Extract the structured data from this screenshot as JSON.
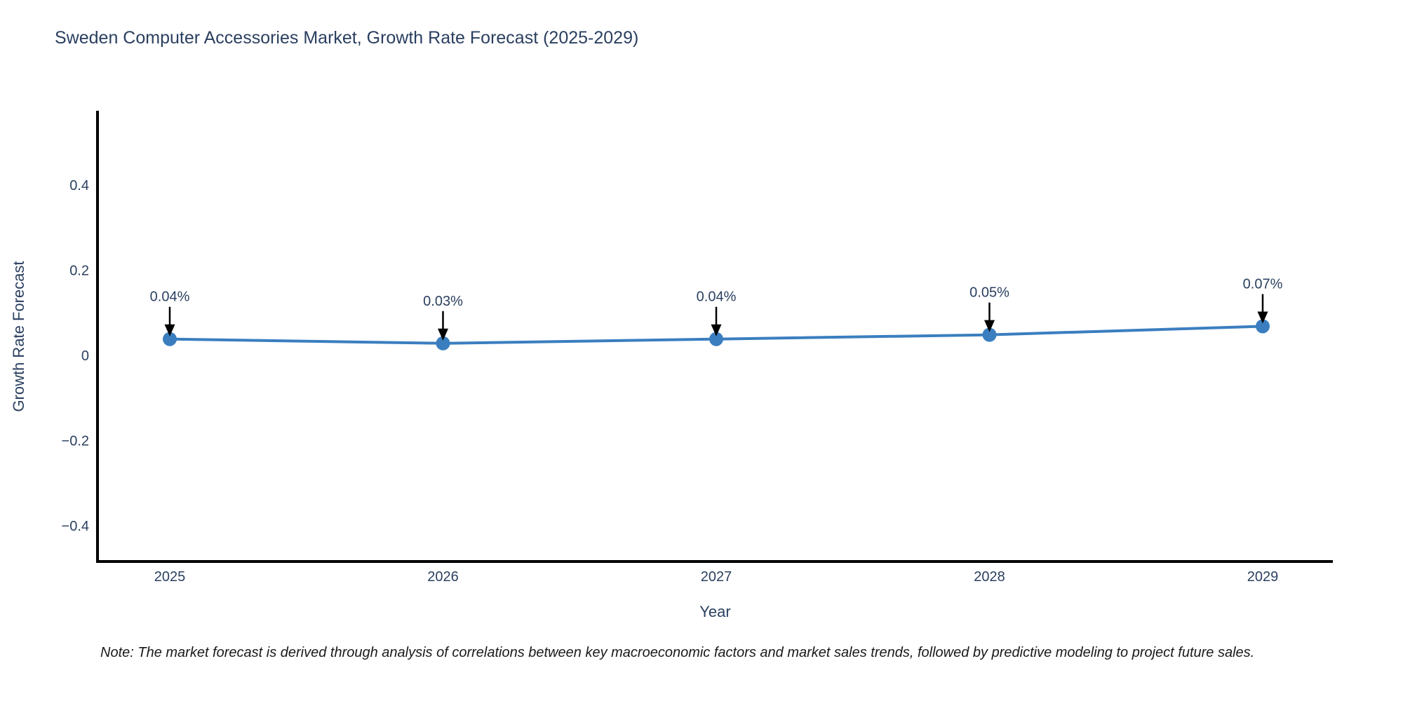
{
  "page": {
    "background": "#ffffff"
  },
  "chart_data": {
    "type": "line",
    "title": "Sweden Computer Accessories Market, Growth Rate Forecast (2025-2029)",
    "xlabel": "Year",
    "ylabel": "Growth Rate Forecast",
    "x": [
      2025,
      2026,
      2027,
      2028,
      2029
    ],
    "x_tick_labels": [
      "2025",
      "2026",
      "2027",
      "2028",
      "2029"
    ],
    "series": [
      {
        "name": "Growth Rate Forecast",
        "values": [
          0.04,
          0.03,
          0.04,
          0.05,
          0.07
        ],
        "point_labels": [
          "0.04%",
          "0.03%",
          "0.04%",
          "0.05%",
          "0.07%"
        ]
      }
    ],
    "y_ticks": [
      0.4,
      0.2,
      0,
      -0.2,
      -0.4
    ],
    "y_tick_labels": [
      "0.4",
      "0.2",
      "0",
      "−0.2",
      "−0.4"
    ],
    "ylim": [
      -0.48,
      0.58
    ],
    "grid": false,
    "legend": "none",
    "colors": {
      "line": "#3a7ebf",
      "marker": "#3a7ebf",
      "axis": "#000000",
      "text": "#2a3f5f",
      "annotation_arrow": "#000000"
    }
  },
  "note": {
    "text": "Note: The market forecast is derived through analysis of correlations between key macroeconomic factors and market sales trends, followed by predictive modeling to project future sales."
  }
}
